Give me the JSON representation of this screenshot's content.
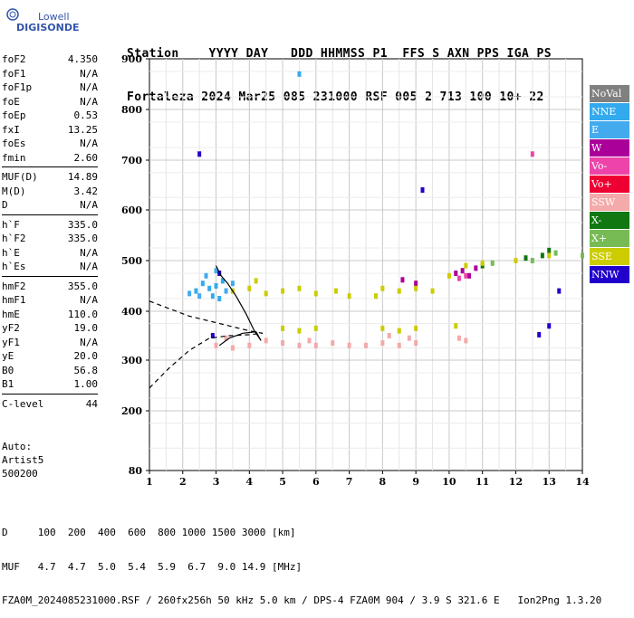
{
  "logo": {
    "top": "Lowell",
    "bottom": "DIGISONDE"
  },
  "header": {
    "line1": "Station    YYYY DAY   DDD HHMMSS P1  FFS S AXN PPS IGA PS",
    "line2": "Fortaleza 2024 Mar25 085 231000 RSF 005 2 713 100 10+ 22"
  },
  "params": {
    "group1": [
      {
        "k": "foF2",
        "v": "4.350"
      },
      {
        "k": "foF1",
        "v": "N/A"
      },
      {
        "k": "foF1p",
        "v": "N/A"
      },
      {
        "k": "foE",
        "v": "N/A"
      },
      {
        "k": "foEp",
        "v": "0.53"
      },
      {
        "k": "fxI",
        "v": "13.25"
      },
      {
        "k": "foEs",
        "v": "N/A"
      },
      {
        "k": "fmin",
        "v": "2.60"
      }
    ],
    "group2": [
      {
        "k": "MUF(D)",
        "v": "14.89"
      },
      {
        "k": "M(D)",
        "v": "3.42"
      },
      {
        "k": "D",
        "v": "N/A"
      }
    ],
    "group3": [
      {
        "k": "h`F",
        "v": "335.0"
      },
      {
        "k": "h`F2",
        "v": "335.0"
      },
      {
        "k": "h`E",
        "v": "N/A"
      },
      {
        "k": "h`Es",
        "v": "N/A"
      }
    ],
    "group4": [
      {
        "k": "hmF2",
        "v": "355.0"
      },
      {
        "k": "hmF1",
        "v": "N/A"
      },
      {
        "k": "hmE",
        "v": "110.0"
      },
      {
        "k": "yF2",
        "v": "19.0"
      },
      {
        "k": "yF1",
        "v": "N/A"
      },
      {
        "k": "yE",
        "v": "20.0"
      },
      {
        "k": "B0",
        "v": "56.8"
      },
      {
        "k": "B1",
        "v": "1.00"
      }
    ],
    "group5": [
      {
        "k": "C-level",
        "v": "44"
      }
    ]
  },
  "auto": {
    "line1": "Auto:",
    "line2": "Artist5",
    "line3": "500200"
  },
  "footer": {
    "line1": "D     100  200  400  600  800 1000 1500 3000 [km]",
    "line2": "MUF   4.7  4.7  5.0  5.4  5.9  6.7  9.0 14.9 [MHz]",
    "line3": "FZA0M_2024085231000.RSF / 260fx256h 50 kHz 5.0 km / DPS-4 FZA0M 904 / 3.9 S 321.6 E   Ion2Png 1.3.20"
  },
  "legend": [
    {
      "label": "NoVal",
      "color": "#808080"
    },
    {
      "label": "NNE",
      "color": "#33aaee"
    },
    {
      "label": "E",
      "color": "#44aaee"
    },
    {
      "label": "W",
      "color": "#aa0099"
    },
    {
      "label": "Vo-",
      "color": "#ee44aa"
    },
    {
      "label": "Vo+",
      "color": "#ee0033"
    },
    {
      "label": "SSW",
      "color": "#f4aaaa"
    },
    {
      "label": "X-",
      "color": "#117711"
    },
    {
      "label": "X+",
      "color": "#77bb55"
    },
    {
      "label": "SSE",
      "color": "#cccc00"
    },
    {
      "label": "NNW",
      "color": "#2200cc"
    }
  ],
  "chart_data": {
    "type": "scatter",
    "xlim": [
      1,
      14
    ],
    "ylim": [
      80,
      900
    ],
    "xticks": [
      "1",
      "2",
      "3",
      "4",
      "5",
      "6",
      "7",
      "8",
      "9",
      "10",
      "11",
      "12",
      "13",
      "14"
    ],
    "yticks": [
      "80",
      "200",
      "300",
      "400",
      "500",
      "600",
      "700",
      "800",
      "900"
    ],
    "grid": true,
    "legend_placement": "right",
    "series": [
      {
        "name": "NNE",
        "color": "#33aaee",
        "points": [
          [
            2.4,
            440
          ],
          [
            2.6,
            455
          ],
          [
            2.8,
            445
          ],
          [
            3.0,
            450
          ],
          [
            2.9,
            430
          ],
          [
            3.2,
            460
          ],
          [
            3.1,
            425
          ],
          [
            5.5,
            870
          ]
        ]
      },
      {
        "name": "E",
        "color": "#44aaee",
        "points": [
          [
            2.5,
            430
          ],
          [
            2.7,
            470
          ],
          [
            3.0,
            480
          ],
          [
            3.3,
            440
          ],
          [
            3.5,
            455
          ],
          [
            2.2,
            435
          ]
        ]
      },
      {
        "name": "W",
        "color": "#aa0099",
        "points": [
          [
            10.2,
            475
          ],
          [
            10.4,
            480
          ],
          [
            10.6,
            470
          ],
          [
            9.0,
            455
          ],
          [
            10.8,
            485
          ],
          [
            8.6,
            462
          ]
        ]
      },
      {
        "name": "Vo-",
        "color": "#ee44aa",
        "points": [
          [
            10.3,
            465
          ],
          [
            10.5,
            470
          ],
          [
            12.5,
            712
          ]
        ]
      },
      {
        "name": "SSW",
        "color": "#f4aaaa",
        "points": [
          [
            3.0,
            330
          ],
          [
            3.5,
            325
          ],
          [
            4.0,
            330
          ],
          [
            5.0,
            335
          ],
          [
            5.5,
            330
          ],
          [
            6.0,
            330
          ],
          [
            7.0,
            330
          ],
          [
            8.0,
            335
          ],
          [
            8.5,
            330
          ],
          [
            9.0,
            335
          ],
          [
            10.3,
            345
          ],
          [
            10.5,
            340
          ],
          [
            3.3,
            345
          ],
          [
            4.5,
            340
          ],
          [
            5.8,
            340
          ],
          [
            7.5,
            330
          ],
          [
            6.5,
            335
          ],
          [
            8.2,
            350
          ],
          [
            8.8,
            345
          ]
        ]
      },
      {
        "name": "X-",
        "color": "#117711",
        "points": [
          [
            11.0,
            490
          ],
          [
            12.3,
            505
          ],
          [
            13.0,
            520
          ],
          [
            12.8,
            510
          ]
        ]
      },
      {
        "name": "X+",
        "color": "#77bb55",
        "points": [
          [
            11.3,
            495
          ],
          [
            12.5,
            500
          ],
          [
            13.2,
            515
          ],
          [
            14.0,
            510
          ]
        ]
      },
      {
        "name": "SSE",
        "color": "#cccc00",
        "points": [
          [
            3.5,
            440
          ],
          [
            4.0,
            445
          ],
          [
            4.5,
            435
          ],
          [
            5.0,
            440
          ],
          [
            5.5,
            445
          ],
          [
            6.0,
            435
          ],
          [
            7.0,
            430
          ],
          [
            8.0,
            445
          ],
          [
            8.5,
            440
          ],
          [
            9.0,
            445
          ],
          [
            10.0,
            470
          ],
          [
            10.5,
            490
          ],
          [
            11.0,
            495
          ],
          [
            12.0,
            500
          ],
          [
            13.0,
            510
          ],
          [
            5.0,
            365
          ],
          [
            5.5,
            360
          ],
          [
            6.0,
            365
          ],
          [
            8.0,
            365
          ],
          [
            8.5,
            360
          ],
          [
            9.0,
            365
          ],
          [
            10.2,
            370
          ],
          [
            4.2,
            460
          ],
          [
            6.6,
            440
          ],
          [
            7.8,
            430
          ],
          [
            9.5,
            440
          ]
        ]
      },
      {
        "name": "NNW",
        "color": "#2200cc",
        "points": [
          [
            2.5,
            712
          ],
          [
            9.2,
            640
          ],
          [
            12.7,
            352
          ],
          [
            13.0,
            370
          ],
          [
            3.1,
            475
          ],
          [
            2.9,
            350
          ],
          [
            13.3,
            440
          ]
        ]
      }
    ],
    "traces": {
      "solid": [
        [
          3.0,
          490
        ],
        [
          3.15,
          470
        ],
        [
          3.35,
          455
        ],
        [
          3.6,
          430
        ],
        [
          3.9,
          395
        ],
        [
          4.15,
          360
        ],
        [
          4.35,
          340
        ],
        [
          4.2,
          358
        ],
        [
          3.8,
          355
        ],
        [
          3.4,
          345
        ],
        [
          3.1,
          330
        ]
      ],
      "dashed_lower": [
        [
          1.0,
          245
        ],
        [
          1.6,
          285
        ],
        [
          2.2,
          320
        ],
        [
          2.8,
          345
        ],
        [
          3.4,
          350
        ],
        [
          4.0,
          352
        ],
        [
          4.4,
          355
        ]
      ],
      "dashed_upper": [
        [
          1.0,
          420
        ],
        [
          1.6,
          405
        ],
        [
          2.2,
          390
        ],
        [
          2.8,
          380
        ],
        [
          3.4,
          370
        ],
        [
          4.0,
          360
        ],
        [
          4.4,
          355
        ]
      ]
    }
  }
}
